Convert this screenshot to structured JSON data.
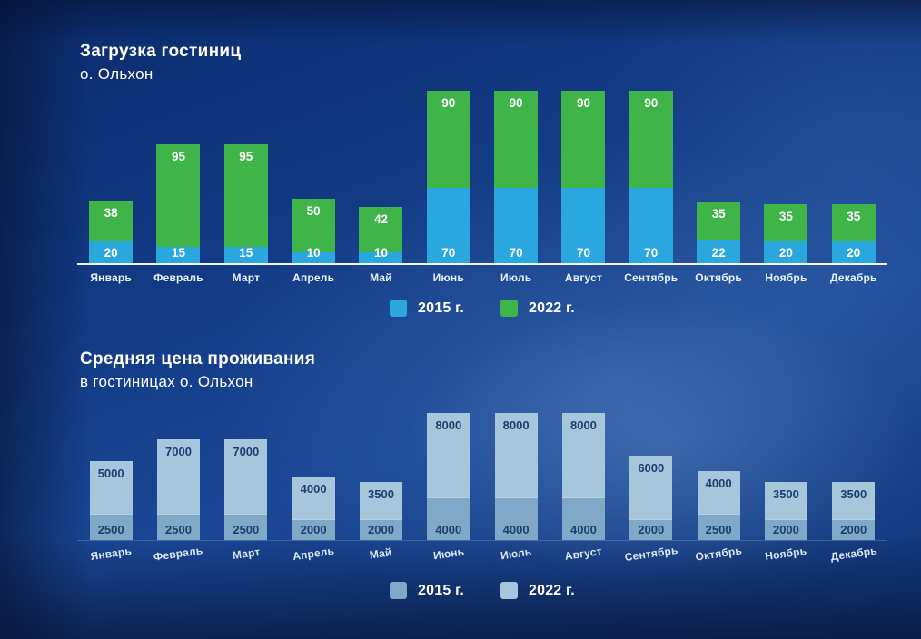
{
  "headings": {
    "chart1_title": "Загрузка гостиниц",
    "chart1_subtitle": "о. Ольхон",
    "chart2_title": "Средняя цена проживания",
    "chart2_subtitle": "в гостиницах о. Ольхон"
  },
  "chart_data": [
    {
      "type": "bar",
      "stacked": true,
      "title": "Загрузка гостиниц о. Ольхон",
      "categories": [
        "Январь",
        "Февраль",
        "Март",
        "Апрель",
        "Май",
        "Июнь",
        "Июль",
        "Август",
        "Сентябрь",
        "Октябрь",
        "Ноябрь",
        "Декабрь"
      ],
      "series": [
        {
          "name": "2015 г.",
          "color": "#2BA7DF",
          "values": [
            20,
            15,
            15,
            10,
            10,
            70,
            70,
            70,
            70,
            22,
            20,
            20
          ]
        },
        {
          "name": "2022 г.",
          "color": "#3FB549",
          "values": [
            38,
            95,
            95,
            50,
            42,
            90,
            90,
            90,
            90,
            35,
            35,
            35
          ]
        }
      ],
      "legend_position": "bottom",
      "value_labels": true
    },
    {
      "type": "bar",
      "stacked": true,
      "title": "Средняя цена проживания в гостиницах о. Ольхон",
      "categories": [
        "Январь",
        "Февраль",
        "Март",
        "Апрель",
        "Май",
        "Июнь",
        "Июль",
        "Август",
        "Сентябрь",
        "Октябрь",
        "Ноябрь",
        "Декабрь"
      ],
      "series": [
        {
          "name": "2015 г.",
          "color": "#7FA9C6",
          "values": [
            2500,
            2500,
            2500,
            2000,
            2000,
            4000,
            4000,
            4000,
            2000,
            2500,
            2000,
            2000
          ]
        },
        {
          "name": "2022 г.",
          "color": "#A6C6DB",
          "values": [
            5000,
            7000,
            7000,
            4000,
            3500,
            8000,
            8000,
            8000,
            6000,
            4000,
            3500,
            3500
          ]
        }
      ],
      "legend_position": "bottom",
      "value_labels": true
    }
  ]
}
